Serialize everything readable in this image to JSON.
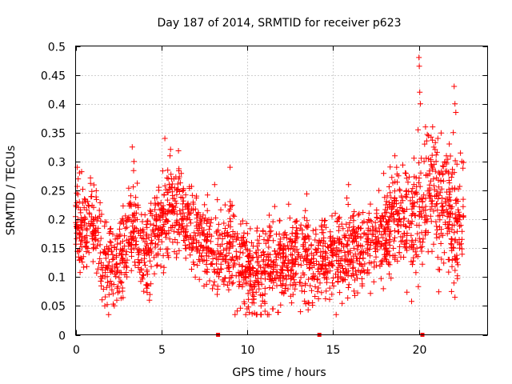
{
  "chart_data": {
    "type": "scatter",
    "title": "Day 187 of 2014, SRMTID for receiver p623",
    "xlabel": "GPS time / hours",
    "ylabel": "SRMTID / TECUs",
    "xlim": [
      0,
      24
    ],
    "ylim": [
      0,
      0.5
    ],
    "x_ticks": [
      0,
      5,
      10,
      15,
      20
    ],
    "x_tick_labels": [
      "0",
      "5",
      "10",
      "15",
      "20"
    ],
    "y_ticks": [
      0,
      0.05,
      0.1,
      0.15,
      0.2,
      0.25,
      0.3,
      0.35,
      0.4,
      0.45,
      0.5
    ],
    "y_tick_labels": [
      "0",
      "0.05",
      "0.1",
      "0.15",
      "0.2",
      "0.25",
      "0.3",
      "0.35",
      "0.4",
      "0.45",
      "0.5"
    ],
    "grid": true,
    "marker": "+",
    "color": "#ff0000",
    "x_range": [
      0,
      22.6
    ],
    "trend": [
      [
        0.0,
        0.2
      ],
      [
        0.5,
        0.18
      ],
      [
        1.0,
        0.19
      ],
      [
        1.5,
        0.16
      ],
      [
        1.8,
        0.11
      ],
      [
        2.2,
        0.12
      ],
      [
        2.7,
        0.14
      ],
      [
        3.2,
        0.2
      ],
      [
        3.5,
        0.18
      ],
      [
        4.0,
        0.13
      ],
      [
        4.5,
        0.17
      ],
      [
        5.0,
        0.2
      ],
      [
        5.5,
        0.22
      ],
      [
        6.0,
        0.21
      ],
      [
        6.5,
        0.19
      ],
      [
        7.0,
        0.18
      ],
      [
        7.5,
        0.16
      ],
      [
        8.0,
        0.15
      ],
      [
        8.5,
        0.14
      ],
      [
        9.0,
        0.15
      ],
      [
        9.5,
        0.13
      ],
      [
        10.0,
        0.11
      ],
      [
        10.5,
        0.11
      ],
      [
        11.0,
        0.11
      ],
      [
        11.5,
        0.12
      ],
      [
        12.0,
        0.13
      ],
      [
        12.5,
        0.13
      ],
      [
        13.0,
        0.14
      ],
      [
        13.5,
        0.14
      ],
      [
        14.0,
        0.13
      ],
      [
        14.5,
        0.14
      ],
      [
        15.0,
        0.14
      ],
      [
        15.5,
        0.14
      ],
      [
        16.0,
        0.15
      ],
      [
        16.5,
        0.15
      ],
      [
        17.0,
        0.16
      ],
      [
        17.5,
        0.17
      ],
      [
        18.0,
        0.17
      ],
      [
        18.5,
        0.2
      ],
      [
        19.0,
        0.19
      ],
      [
        19.5,
        0.2
      ],
      [
        20.0,
        0.22
      ],
      [
        20.5,
        0.24
      ],
      [
        21.0,
        0.25
      ],
      [
        21.5,
        0.22
      ],
      [
        22.0,
        0.2
      ],
      [
        22.6,
        0.21
      ]
    ],
    "spikes": [
      [
        0.1,
        0.29
      ],
      [
        0.15,
        0.27
      ],
      [
        3.3,
        0.325
      ],
      [
        3.4,
        0.3
      ],
      [
        5.2,
        0.34
      ],
      [
        5.5,
        0.31
      ],
      [
        6.0,
        0.27
      ],
      [
        8.1,
        0.26
      ],
      [
        9.0,
        0.29
      ],
      [
        15.9,
        0.26
      ],
      [
        18.6,
        0.31
      ],
      [
        18.7,
        0.29
      ],
      [
        19.2,
        0.28
      ],
      [
        20.0,
        0.48
      ],
      [
        20.02,
        0.465
      ],
      [
        20.05,
        0.42
      ],
      [
        20.08,
        0.4
      ],
      [
        19.95,
        0.355
      ],
      [
        20.3,
        0.3
      ],
      [
        20.8,
        0.36
      ],
      [
        21.1,
        0.34
      ],
      [
        21.6,
        0.31
      ],
      [
        22.05,
        0.43
      ],
      [
        22.1,
        0.4
      ],
      [
        22.15,
        0.385
      ],
      [
        22.0,
        0.35
      ],
      [
        22.5,
        0.3
      ],
      [
        21.9,
        0.075
      ],
      [
        22.1,
        0.065
      ],
      [
        1.7,
        0.05
      ],
      [
        4.3,
        0.06
      ],
      [
        10.8,
        0.05
      ],
      [
        11.5,
        0.045
      ],
      [
        13.1,
        0.04
      ],
      [
        2.4,
        0.06
      ]
    ],
    "zero_points": [
      8.3,
      14.2,
      20.2
    ]
  }
}
